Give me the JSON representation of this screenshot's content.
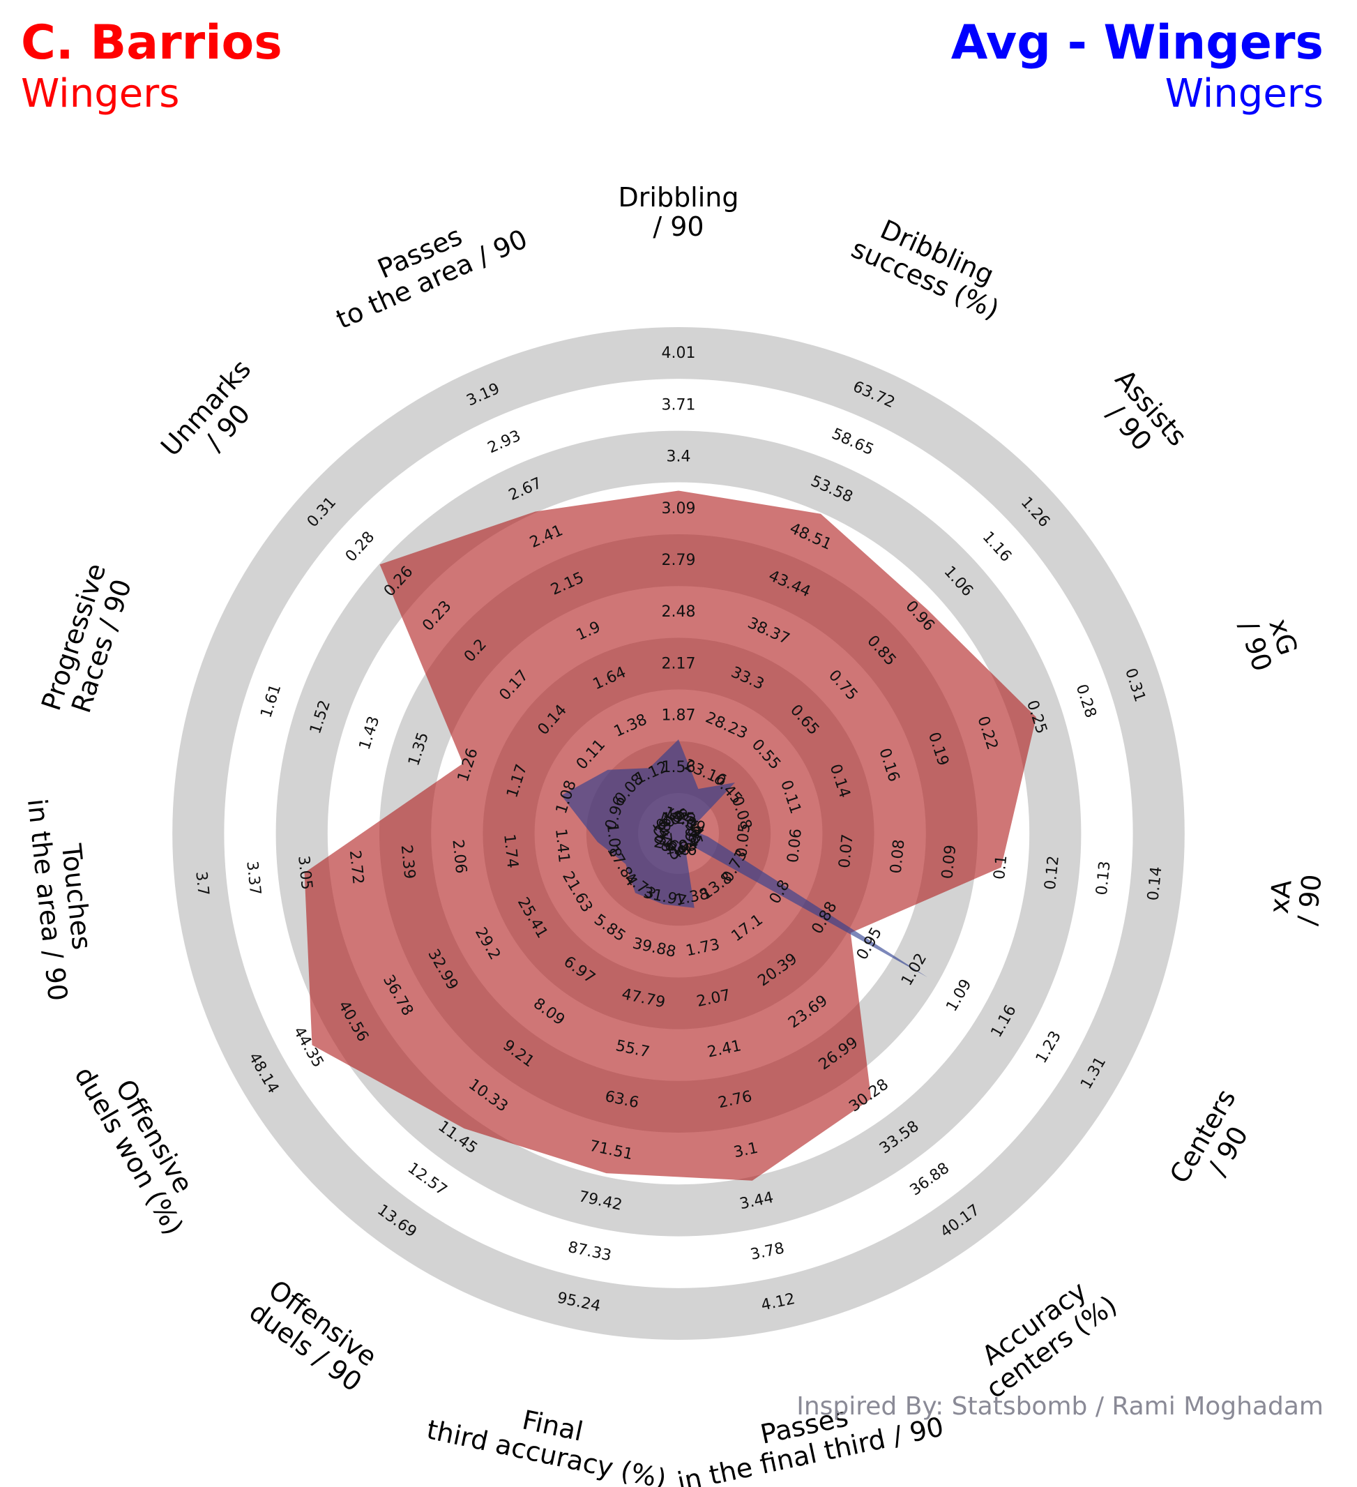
{
  "header": {
    "left_name": "C. Barrios",
    "left_sub": "Wingers",
    "right_name": "Avg - Wingers",
    "right_sub": "Wingers"
  },
  "credit": "Inspired By: Statsbomb / Rami Moghadam",
  "colors": {
    "player": "#b22222",
    "average": "#2b3d8f",
    "player_title": "#ff0000",
    "average_title": "#0000ff",
    "ring_band": "#d3d3d3",
    "inner_band_a": "#c0666d",
    "inner_band_b": "#d5787f"
  },
  "chart_data": {
    "type": "radar",
    "series": [
      {
        "name": "C. Barrios",
        "color": "#b22222",
        "values": [
          3.2,
          51.0,
          0.98,
          0.25,
          0.1,
          0.92,
          30.5,
          3.3,
          75.0,
          11.2,
          44.0,
          3.05,
          1.27,
          0.27,
          2.55
        ]
      },
      {
        "name": "Avg - Wingers",
        "color": "#2b3d8f",
        "values": [
          1.73,
          21.5,
          0.47,
          0.045,
          0.043,
          1.04,
          7.5,
          1.45,
          33.0,
          4.9,
          17.5,
          1.18,
          1.09,
          0.097,
          1.15
        ]
      }
    ],
    "axes": [
      {
        "label": "Dribbling\n/ 90",
        "ticks": [
          "1.25",
          "1.56",
          "1.87",
          "2.17",
          "2.48",
          "2.79",
          "3.09",
          "3.4",
          "3.71",
          "4.01"
        ]
      },
      {
        "label": "Dribbling\nsuccess (%)",
        "ticks": [
          "18.09",
          "23.16",
          "28.23",
          "33.3",
          "38.37",
          "43.44",
          "48.51",
          "53.58",
          "58.65",
          "63.72"
        ]
      },
      {
        "label": "Assists\n/ 90",
        "ticks": [
          "0.34",
          "0.45",
          "0.55",
          "0.65",
          "0.75",
          "0.85",
          "0.96",
          "1.06",
          "1.16",
          "1.26"
        ]
      },
      {
        "label": "xG\n/ 90",
        "ticks": [
          "0.05",
          "0.08",
          "0.11",
          "0.14",
          "0.16",
          "0.19",
          "0.22",
          "0.25",
          "0.28",
          "0.31"
        ]
      },
      {
        "label": "xA\n/ 90",
        "ticks": [
          "0.04",
          "0.05",
          "0.06",
          "0.07",
          "0.08",
          "0.09",
          "0.1",
          "0.12",
          "0.13",
          "0.14"
        ]
      },
      {
        "label": "Centers\n/ 90",
        "ticks": [
          "0.66",
          "0.73",
          "0.8",
          "0.88",
          "0.95",
          "1.02",
          "1.09",
          "1.16",
          "1.23",
          "1.31"
        ]
      },
      {
        "label": "Accuracy\ncenters (%)",
        "ticks": [
          "10.5",
          "13.8",
          "17.1",
          "20.39",
          "23.69",
          "26.99",
          "30.28",
          "33.58",
          "36.88",
          "40.17"
        ]
      },
      {
        "label": "Passes\nin the final third / 90",
        "ticks": [
          "1.04",
          "1.38",
          "1.73",
          "2.07",
          "2.41",
          "2.76",
          "3.1",
          "3.44",
          "3.78",
          "4.12"
        ]
      },
      {
        "label": "Final\nthird accuracy (%)",
        "ticks": [
          "24.06",
          "31.97",
          "39.88",
          "47.79",
          "55.7",
          "63.6",
          "71.51",
          "79.42",
          "87.33",
          "95.24"
        ]
      },
      {
        "label": "Offensive\nduels / 90",
        "ticks": [
          "3.62",
          "4.73",
          "5.85",
          "6.97",
          "8.09",
          "9.21",
          "10.33",
          "11.45",
          "12.57",
          "13.69"
        ]
      },
      {
        "label": "Offensive\nduels won (%)",
        "ticks": [
          "14.05",
          "17.84",
          "21.63",
          "25.41",
          "29.2",
          "32.99",
          "36.78",
          "40.56",
          "44.35",
          "48.14"
        ]
      },
      {
        "label": "Touches\nin the area / 90",
        "ticks": [
          "0.76",
          "1.08",
          "1.41",
          "1.74",
          "2.06",
          "2.39",
          "2.72",
          "3.05",
          "3.37",
          "3.7"
        ]
      },
      {
        "label": "Progressive\nRaces / 90",
        "ticks": [
          "0.87",
          "0.96",
          "1.08",
          "1.17",
          "1.26",
          "1.35",
          "1.43",
          "1.52",
          "1.61"
        ]
      },
      {
        "label": "Unmarks\n/ 90",
        "ticks": [
          "0.06",
          "0.08",
          "0.11",
          "0.14",
          "0.17",
          "0.2",
          "0.23",
          "0.26",
          "0.28",
          "0.31"
        ]
      },
      {
        "label": "Passes\nto the area / 90",
        "ticks": [
          "0.86",
          "1.12",
          "1.38",
          "1.64",
          "1.9",
          "2.15",
          "2.41",
          "2.67",
          "2.93",
          "3.19"
        ]
      }
    ]
  }
}
